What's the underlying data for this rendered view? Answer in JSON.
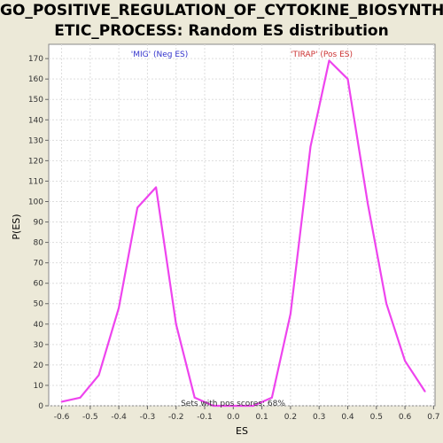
{
  "chart_data": {
    "type": "line",
    "title_line1": "GO_POSITIVE_REGULATION_OF_CYTOKINE_BIOSYNTH",
    "title_line2": "ETIC_PROCESS: Random ES distribution",
    "xlabel": "ES",
    "ylabel": "P(ES)",
    "xlim": [
      -0.645,
      0.705
    ],
    "ylim": [
      0,
      177
    ],
    "xticks": [
      -0.6,
      -0.5,
      -0.4,
      -0.3,
      -0.2,
      -0.1,
      0.0,
      0.1,
      0.2,
      0.3,
      0.4,
      0.5,
      0.6,
      0.7
    ],
    "xtick_labels": [
      "-0.6",
      "-0.5",
      "-0.4",
      "-0.3",
      "-0.2",
      "-0.1",
      "0.0",
      "0.1",
      "0.2",
      "0.3",
      "0.4",
      "0.5",
      "0.6",
      "0.7"
    ],
    "yticks": [
      0,
      10,
      20,
      30,
      40,
      50,
      60,
      70,
      80,
      90,
      100,
      110,
      120,
      130,
      140,
      150,
      160,
      170
    ],
    "ytick_labels": [
      "0",
      "10",
      "20",
      "30",
      "40",
      "50",
      "60",
      "70",
      "80",
      "90",
      "100",
      "110",
      "120",
      "130",
      "140",
      "150",
      "160",
      "170"
    ],
    "grid": true,
    "series": [
      {
        "color": "#ee44ee",
        "x": [
          -0.6,
          -0.535,
          -0.47,
          -0.4,
          -0.335,
          -0.27,
          -0.2,
          -0.135,
          -0.07,
          0.0,
          0.07,
          0.135,
          0.2,
          0.27,
          0.335,
          0.4,
          0.47,
          0.535,
          0.6,
          0.67
        ],
        "y": [
          2,
          4,
          15,
          48,
          97,
          107,
          40,
          4,
          0,
          0,
          0,
          4,
          45,
          127,
          169,
          160,
          99,
          50,
          22,
          7
        ]
      }
    ],
    "annotations": [
      {
        "text": "'MIG' (Neg ES)",
        "color": "#3333cc"
      },
      {
        "text": "'TIRAP' (Pos ES)",
        "color": "#cc3333"
      },
      {
        "text": "Sets with pos scores: 68%",
        "color": "#333333"
      }
    ]
  }
}
